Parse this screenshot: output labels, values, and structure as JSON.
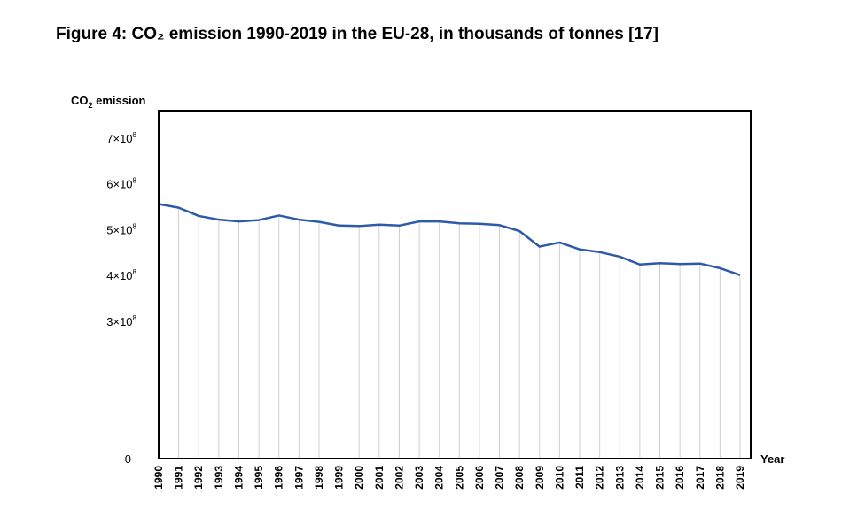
{
  "title": "Figure 4: CO₂ emission 1990-2019 in the EU-28, in thousands of tonnes [17]",
  "chart_data": {
    "type": "line",
    "title": "Figure 4: CO₂ emission 1990-2019 in the EU-28, in thousands of tonnes [17]",
    "ylabel": "CO2 emission",
    "xlabel": "Year",
    "x": [
      1990,
      1991,
      1992,
      1993,
      1994,
      1995,
      1996,
      1997,
      1998,
      1999,
      2000,
      2001,
      2002,
      2003,
      2004,
      2005,
      2006,
      2007,
      2008,
      2009,
      2010,
      2011,
      2012,
      2013,
      2014,
      2015,
      2016,
      2017,
      2018,
      2019
    ],
    "x_tick_labels": [
      "1990",
      "1991",
      "1992",
      "1993",
      "1994",
      "1995",
      "1996",
      "1997",
      "1998",
      "1999",
      "2000",
      "2001",
      "2002",
      "2003",
      "2004",
      "2005",
      "2006",
      "2007",
      "2008",
      "2009",
      "2010",
      "2011",
      "2012",
      "2013",
      "2014",
      "2015",
      "2016",
      "2017",
      "2018",
      "2019"
    ],
    "series": [
      {
        "color": "#2f5aa8",
        "values": [
          556000000,
          548000000,
          530000000,
          522000000,
          518000000,
          521000000,
          531000000,
          522000000,
          517000000,
          509000000,
          508000000,
          511000000,
          509000000,
          518000000,
          518000000,
          514000000,
          513000000,
          510000000,
          497000000,
          463000000,
          472000000,
          457000000,
          451000000,
          441000000,
          424000000,
          427000000,
          425000000,
          426000000,
          416000000,
          401000000
        ]
      }
    ],
    "y_ticks": [
      {
        "value": 0,
        "mant": "0",
        "times": "",
        "exp": ""
      },
      {
        "value": 300000000,
        "mant": "3",
        "times": "×10",
        "exp": "8"
      },
      {
        "value": 400000000,
        "mant": "4",
        "times": "×10",
        "exp": "8"
      },
      {
        "value": 500000000,
        "mant": "5",
        "times": "×10",
        "exp": "8"
      },
      {
        "value": 600000000,
        "mant": "6",
        "times": "×10",
        "exp": "8"
      },
      {
        "value": 700000000,
        "mant": "7",
        "times": "×10",
        "exp": "8"
      }
    ],
    "ylim": [
      0,
      760000000
    ],
    "grid": "vertical",
    "legend": "none"
  }
}
